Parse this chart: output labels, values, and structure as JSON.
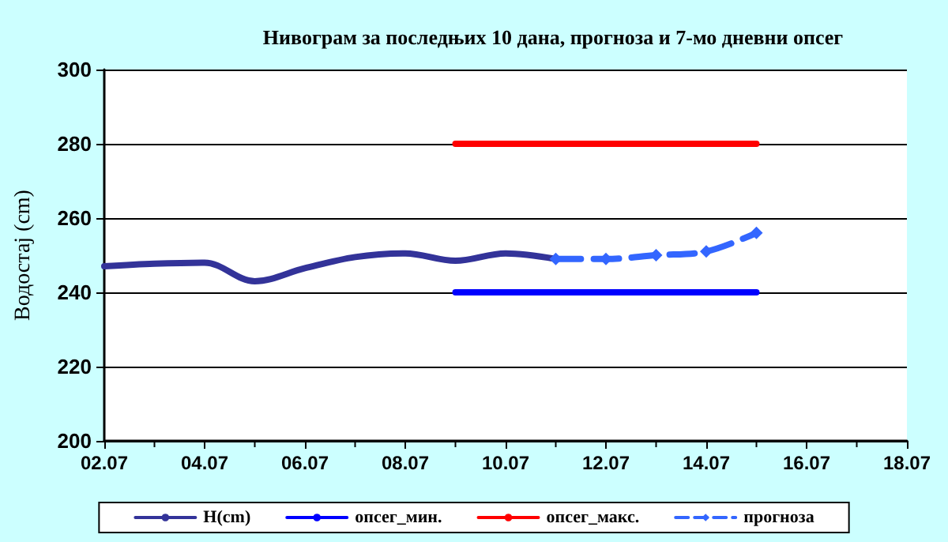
{
  "chart_data": {
    "type": "line",
    "title": "Нивограм за последњих 10 дана, прогноза и 7-мо дневни опсег",
    "ylabel": "Водостај (cm)",
    "x": [
      "--07-02",
      "--07-03",
      "--07-04",
      "--07-05",
      "--07-06",
      "--07-07",
      "--07-08",
      "--07-09",
      "--07-10",
      "--07-11"
    ],
    "series": [
      {
        "name": "H(cm)",
        "color": "#333399",
        "values": [
          247,
          247.7,
          248,
          243,
          246.5,
          249.5,
          250.5,
          248.5,
          250.5,
          249
        ],
        "marker": "none",
        "line_style": "solid"
      },
      {
        "name": "опсег_мин.",
        "color": "#0000ff",
        "x": [
          "--07-09",
          "--07-15"
        ],
        "values": [
          240,
          240
        ],
        "marker": "none",
        "line_style": "solid"
      },
      {
        "name": "опсег_макс.",
        "color": "#ff0000",
        "x": [
          "--07-09",
          "--07-15"
        ],
        "values": [
          280,
          280
        ],
        "marker": "none",
        "line_style": "solid"
      },
      {
        "name": "прогноза",
        "color": "#3366ff",
        "x": [
          "--07-11",
          "--07-12",
          "--07-13",
          "--07-14",
          "--07-15"
        ],
        "values": [
          249,
          249,
          250,
          251,
          256
        ],
        "marker": "diamond",
        "line_style": "dashed"
      }
    ],
    "xlim": [
      "--07-02",
      "--07-18"
    ],
    "xticks": [
      {
        "value": "--07-02",
        "label": "02.07"
      },
      {
        "value": "--07-04",
        "label": "04.07"
      },
      {
        "value": "--07-06",
        "label": "06.07"
      },
      {
        "value": "--07-08",
        "label": "08.07"
      },
      {
        "value": "--07-10",
        "label": "10.07"
      },
      {
        "value": "--07-12",
        "label": "12.07"
      },
      {
        "value": "--07-14",
        "label": "14.07"
      },
      {
        "value": "--07-16",
        "label": "16.07"
      },
      {
        "value": "--07-18",
        "label": "18.07"
      }
    ],
    "ylim": [
      200,
      300
    ],
    "yticks": [
      200,
      220,
      240,
      260,
      280,
      300
    ],
    "grid": "y",
    "legend": "bottom"
  }
}
